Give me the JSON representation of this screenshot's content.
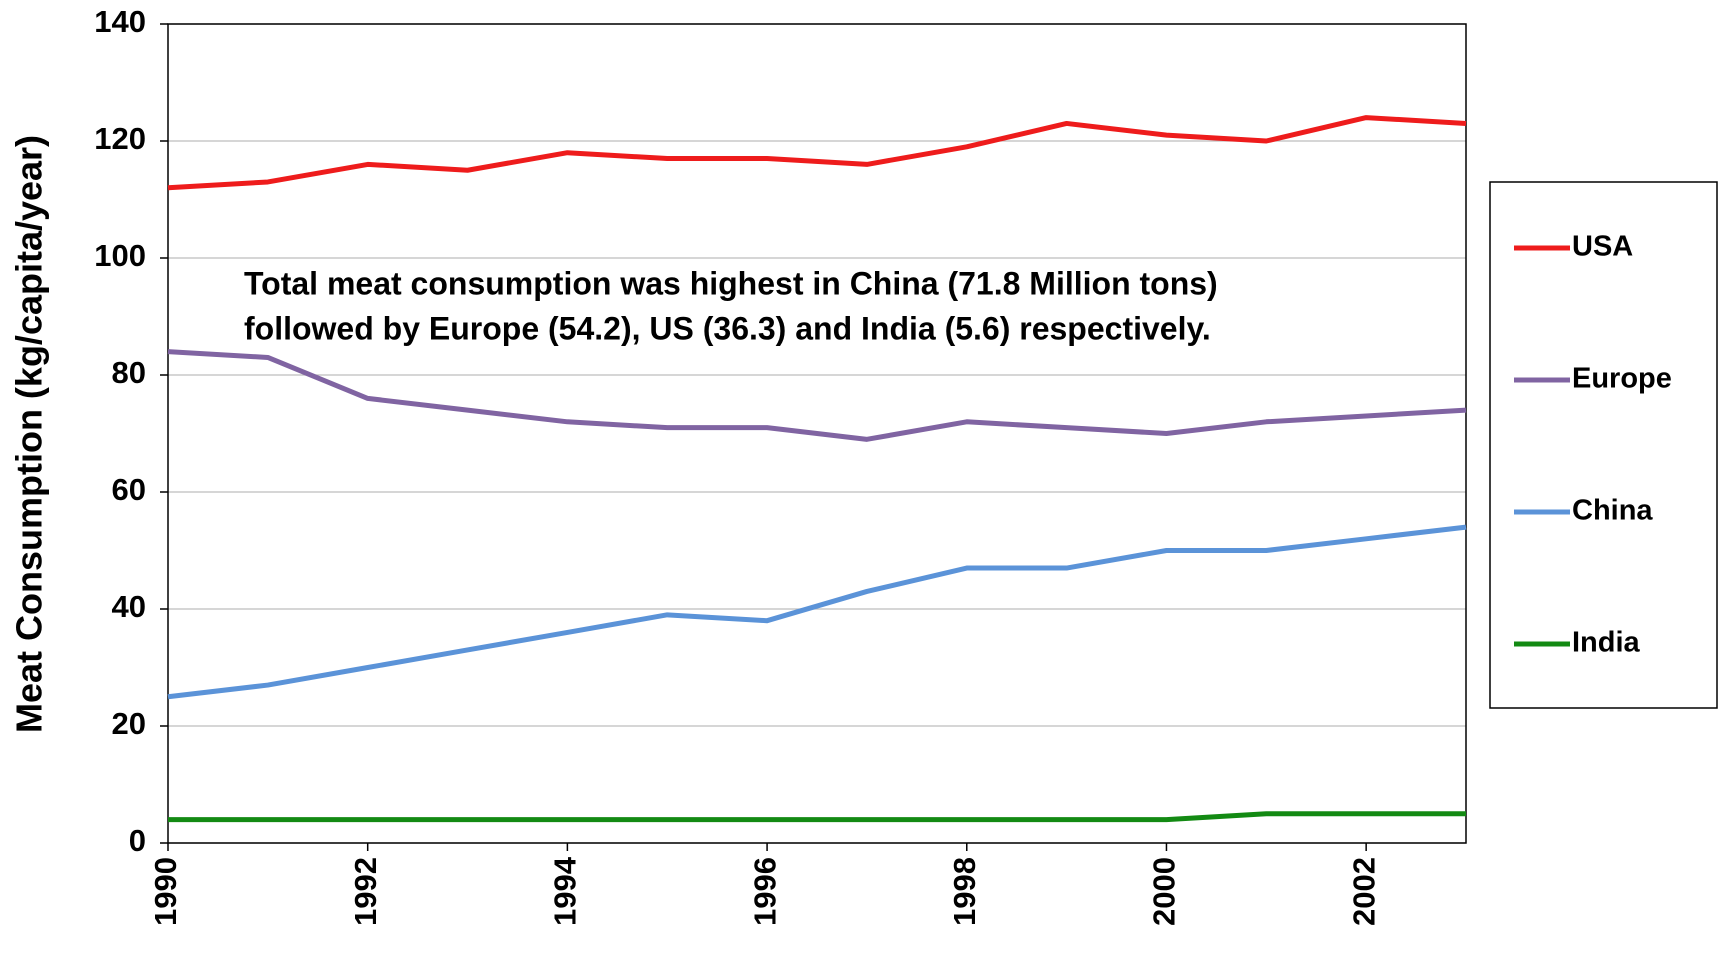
{
  "chart_data": {
    "type": "line",
    "y_label": "Meat Consumption (kg/capita/year)",
    "annotation": [
      "Total meat consumption was highest in China (71.8 Million tons)",
      "followed by Europe (54.2), US (36.3) and India  (5.6) respectively."
    ],
    "x": [
      1990,
      1991,
      1992,
      1993,
      1994,
      1995,
      1996,
      1997,
      1998,
      1999,
      2000,
      2001,
      2002,
      2003
    ],
    "xlim": [
      1990,
      2003
    ],
    "xticks": [
      1990,
      1992,
      1994,
      1996,
      1998,
      2000,
      2002
    ],
    "ylim": [
      0,
      140
    ],
    "yticks": [
      0,
      20,
      40,
      60,
      80,
      100,
      120,
      140
    ],
    "grid": true,
    "legend": "right",
    "series": [
      {
        "name": "USA",
        "color": "#ee1c1c",
        "values": [
          112,
          113,
          116,
          115,
          118,
          117,
          117,
          116,
          119,
          123,
          121,
          120,
          124,
          123
        ]
      },
      {
        "name": "Europe",
        "color": "#8064a2",
        "values": [
          84,
          83,
          76,
          74,
          72,
          71,
          71,
          69,
          72,
          71,
          70,
          72,
          73,
          74
        ]
      },
      {
        "name": "China",
        "color": "#5b93d8",
        "values": [
          25,
          27,
          30,
          33,
          36,
          39,
          38,
          43,
          47,
          47,
          50,
          50,
          52,
          54
        ]
      },
      {
        "name": "India",
        "color": "#138a13",
        "values": [
          4,
          4,
          4,
          4,
          4,
          4,
          4,
          4,
          4,
          4,
          4,
          5,
          5,
          5
        ]
      }
    ]
  }
}
